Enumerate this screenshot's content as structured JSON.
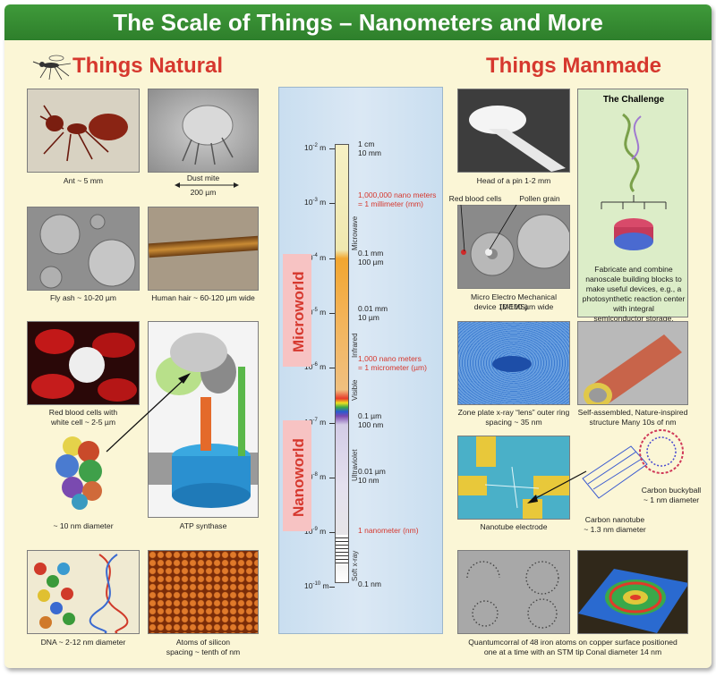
{
  "title": "The Scale of Things – Nanometers and More",
  "natural_heading": "Things Natural",
  "manmade_heading": "Things Manmade",
  "natural": {
    "ant": "Ant ~ 5 mm",
    "dust_mite_1": "Dust mite",
    "dust_mite_2": "200 µm",
    "fly_ash": "Fly ash ~ 10-20 µm",
    "hair": "Human hair ~ 60-120 µm wide",
    "rbc_1": "Red blood cells with",
    "rbc_2": "white cell ~ 2-5 µm",
    "protein": "~ 10 nm diameter",
    "atp": "ATP synthase",
    "dna": "DNA ~ 2-12 nm diameter",
    "silicon_1": "Atoms of silicon",
    "silicon_2": "spacing ~ tenth of nm"
  },
  "manmade": {
    "pin": "Head of a pin 1-2 mm",
    "mems_rbc": "Red blood cells",
    "mems_pollen": "Pollen grain",
    "mems_1": "Micro Electro Mechanical (MEMS)",
    "mems_2": "device 10-100 µm wide",
    "zone_1": "Zone plate x-ray “lens” outer ring",
    "zone_2": "spacing ~ 35 nm",
    "self_1": "Self-assembled, Nature-inspired",
    "self_2": "structure Many 10s of nm",
    "nanotube_electrode": "Nanotube electrode",
    "buckyball_1": "Carbon buckyball",
    "buckyball_2": "~ 1 nm diameter",
    "nanotube_1": "Carbon nanotube",
    "nanotube_2": "~ 1.3 nm diameter",
    "corral_1": "Quantumcorral of 48 iron atoms on copper surface positioned",
    "corral_2": "one at a time with an STM tip Conal diameter 14 nm"
  },
  "challenge": {
    "title": "The Challenge",
    "l1": "Fabricate and combine",
    "l2": "nanoscale building blocks to",
    "l3": "make useful devices, e.g., a",
    "l4": "photosynthetic reaction center",
    "l5": "with integral",
    "l6": "semiconductor storage."
  },
  "scale": {
    "ticks": [
      "-2",
      "-3",
      "-4",
      "-5",
      "-6",
      "-7",
      "-8",
      "-9",
      "-10"
    ],
    "tick_base": "10",
    "tick_unit": "m",
    "r_1cm": "1 cm",
    "r_10mm": "10 mm",
    "r_million_1": "1,000,000 nano meters",
    "r_million_2": "= 1 millimeter (mm)",
    "r_01mm": "0.1 mm",
    "r_100um": "100 µm",
    "r_001mm": "0.01 mm",
    "r_10um": "10 µm",
    "r_thousand_1": "1,000 nano meters",
    "r_thousand_2": "= 1 micrometer (µm)",
    "r_01um": "0.1 µm",
    "r_100nm": "100 nm",
    "r_001um": "0.01 µm",
    "r_10nm": "10 nm",
    "r_1nm": "1 nanometer (nm)",
    "r_01nm": "0.1 nm",
    "bands": {
      "microwave": "Microwave",
      "infrared": "Infrared",
      "visible": "Visible",
      "ultraviolet": "Ultraviolet",
      "soft_xray": "Soft x-ray"
    },
    "microworld": "Microworld",
    "nanoworld": "Nanoworld"
  },
  "colors": {
    "banner": "#3f9a3a",
    "heading_red": "#d6382e",
    "poster_bg": "#fbf6d6",
    "scale_bg": "#c9def0"
  }
}
